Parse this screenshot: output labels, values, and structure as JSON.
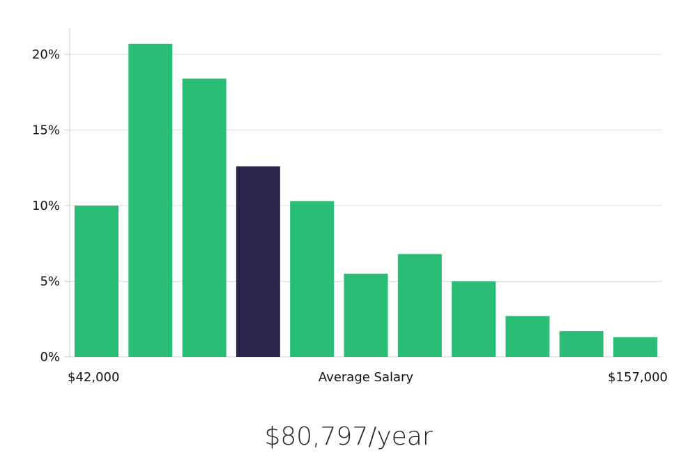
{
  "chart_data": {
    "type": "bar",
    "title": "",
    "ylabel": "",
    "xlabel": "Average Salary",
    "x_min_label": "$42,000",
    "x_max_label": "$157,000",
    "ylim": [
      0,
      22
    ],
    "yticks": [
      0,
      5,
      10,
      15,
      20
    ],
    "ytick_labels": [
      "0%",
      "5%",
      "10%",
      "15%",
      "20%"
    ],
    "values": [
      10.0,
      20.7,
      18.4,
      12.6,
      10.3,
      5.5,
      6.8,
      5.0,
      2.7,
      1.7,
      1.3
    ],
    "highlight_index": 3,
    "colors": {
      "bar": "#2abd76",
      "highlight": "#28244a",
      "grid": "#dddddd",
      "axis": "#cccccc"
    }
  },
  "summary": {
    "salary": "$80,797/year"
  }
}
